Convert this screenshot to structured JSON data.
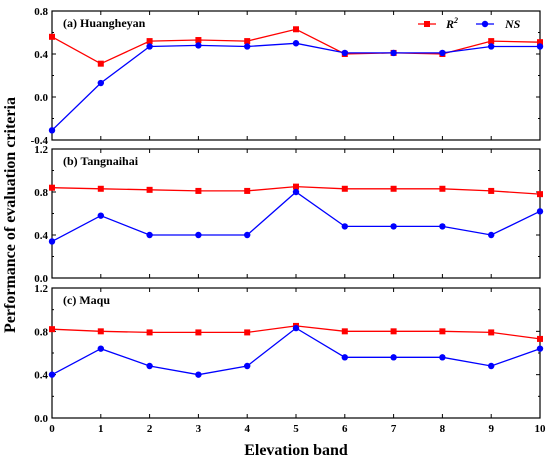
{
  "chart_data": {
    "type": "line",
    "xlabel": "Elevation band",
    "ylabel": "Performance of evaluation criteria",
    "x": [
      0,
      1,
      2,
      3,
      4,
      5,
      6,
      7,
      8,
      9,
      10
    ],
    "xlim": [
      0,
      10
    ],
    "legend": {
      "placement": "top-right",
      "entries": [
        {
          "base": "R",
          "sup": "2",
          "color": "#ff0000",
          "marker": "square"
        },
        {
          "base": "NS",
          "sup": "",
          "color": "#0000ff",
          "marker": "circle"
        }
      ]
    },
    "panels": [
      {
        "label": "(a) Huangheyan",
        "ylim": [
          -0.4,
          0.8
        ],
        "yticks": [
          "-0.4",
          "0.0",
          "0.4",
          "0.8"
        ],
        "series": [
          {
            "name": "R2",
            "color": "#ff0000",
            "marker": "square",
            "values": [
              0.56,
              0.31,
              0.52,
              0.53,
              0.52,
              0.63,
              0.4,
              0.41,
              0.4,
              0.52,
              0.51
            ]
          },
          {
            "name": "NS",
            "color": "#0000ff",
            "marker": "circle",
            "values": [
              -0.31,
              0.13,
              0.47,
              0.48,
              0.47,
              0.5,
              0.41,
              0.41,
              0.41,
              0.47,
              0.47
            ]
          }
        ]
      },
      {
        "label": "(b) Tangnaihai",
        "ylim": [
          0.0,
          1.2
        ],
        "yticks": [
          "0.0",
          "0.4",
          "0.8",
          "1.2"
        ],
        "series": [
          {
            "name": "R2",
            "color": "#ff0000",
            "marker": "square",
            "values": [
              0.84,
              0.83,
              0.82,
              0.81,
              0.81,
              0.85,
              0.83,
              0.83,
              0.83,
              0.81,
              0.78
            ]
          },
          {
            "name": "NS",
            "color": "#0000ff",
            "marker": "circle",
            "values": [
              0.34,
              0.58,
              0.4,
              0.4,
              0.4,
              0.8,
              0.48,
              0.48,
              0.48,
              0.4,
              0.62
            ]
          }
        ]
      },
      {
        "label": "(c) Maqu",
        "ylim": [
          0.0,
          1.2
        ],
        "yticks": [
          "0.0",
          "0.4",
          "0.8",
          "1.2"
        ],
        "series": [
          {
            "name": "R2",
            "color": "#ff0000",
            "marker": "square",
            "values": [
              0.82,
              0.8,
              0.79,
              0.79,
              0.79,
              0.85,
              0.8,
              0.8,
              0.8,
              0.79,
              0.73
            ]
          },
          {
            "name": "NS",
            "color": "#0000ff",
            "marker": "circle",
            "values": [
              0.4,
              0.64,
              0.48,
              0.4,
              0.48,
              0.83,
              0.56,
              0.56,
              0.56,
              0.48,
              0.64
            ]
          }
        ]
      }
    ]
  }
}
